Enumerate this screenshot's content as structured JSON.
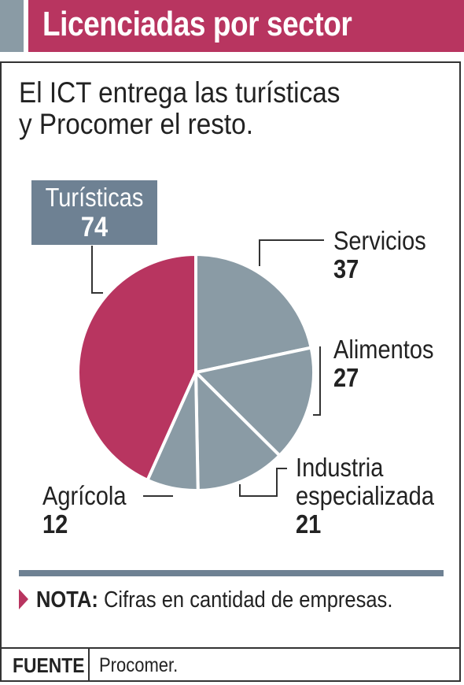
{
  "header": {
    "title": "Licenciadas por sector"
  },
  "subtitle": {
    "line1": "El ICT entrega las turísticas",
    "line2": "y Procomer el resto."
  },
  "colors": {
    "accent": "#b83560",
    "slate": "#6e8193",
    "slice_gray": "#8a9ba5",
    "header_accent": "#8a9ba5"
  },
  "chart_data": {
    "type": "pie",
    "title": "Licenciadas por sector",
    "categories": [
      "Servicios",
      "Alimentos",
      "Industria especializada",
      "Agrícola",
      "Turísticas"
    ],
    "values": [
      37,
      27,
      21,
      12,
      74
    ],
    "labels": {
      "servicios": {
        "name": "Servicios",
        "value": "37"
      },
      "alimentos": {
        "name": "Alimentos",
        "value": "27"
      },
      "industria": {
        "name1": "Industria",
        "name2": "especializada",
        "value": "21"
      },
      "agricola": {
        "name": "Agrícola",
        "value": "12"
      },
      "turisticas": {
        "name": "Turísticas",
        "value": "74"
      }
    },
    "slice_colors": [
      "#8a9ba5",
      "#8a9ba5",
      "#8a9ba5",
      "#8a9ba5",
      "#b83560"
    ],
    "highlight": "Turísticas",
    "legend": "none"
  },
  "note": {
    "label": "NOTA:",
    "text": "Cifras en cantidad de empresas."
  },
  "source": {
    "label": "FUENTE",
    "text": "Procomer."
  }
}
